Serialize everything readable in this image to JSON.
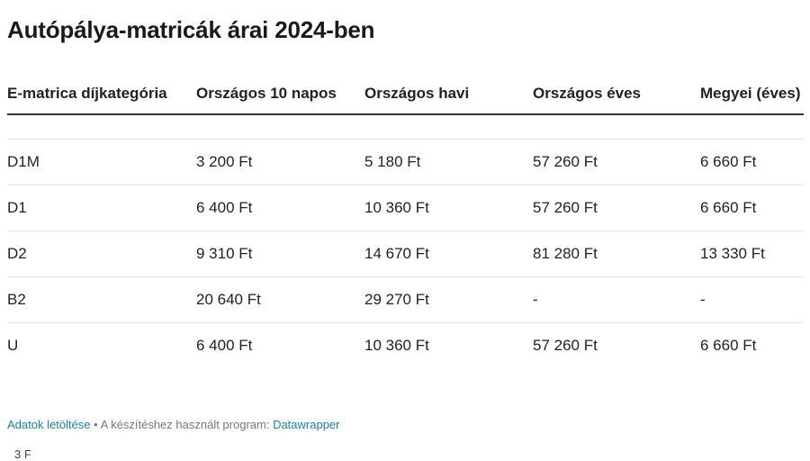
{
  "title": "Autópálya-matricák árai 2024-ben",
  "chart_data": {
    "type": "table",
    "title": "Autópálya-matricák árai 2024-ben",
    "columns": [
      "E-matrica díjkategória",
      "Országos 10 napos",
      "Országos havi",
      "Országos éves",
      "Megyei (éves)"
    ],
    "rows": [
      [
        "D1M",
        "3 200 Ft",
        "5 180 Ft",
        "57 260 Ft",
        "6 660 Ft"
      ],
      [
        "D1",
        "6 400 Ft",
        "10 360 Ft",
        "57 260 Ft",
        "6 660 Ft"
      ],
      [
        "D2",
        "9 310 Ft",
        "14 670 Ft",
        "81 280 Ft",
        "13 330 Ft"
      ],
      [
        "B2",
        "20 640 Ft",
        "29 270 Ft",
        "-",
        "-"
      ],
      [
        "U",
        "6 400 Ft",
        "10 360 Ft",
        "57 260 Ft",
        "6 660 Ft"
      ]
    ]
  },
  "footer": {
    "download_label": "Adatok letöltése",
    "separator": " • ",
    "made_with": "A készítéshez használt program: ",
    "tool": "Datawrapper"
  },
  "cutoff_text": "3 F"
}
